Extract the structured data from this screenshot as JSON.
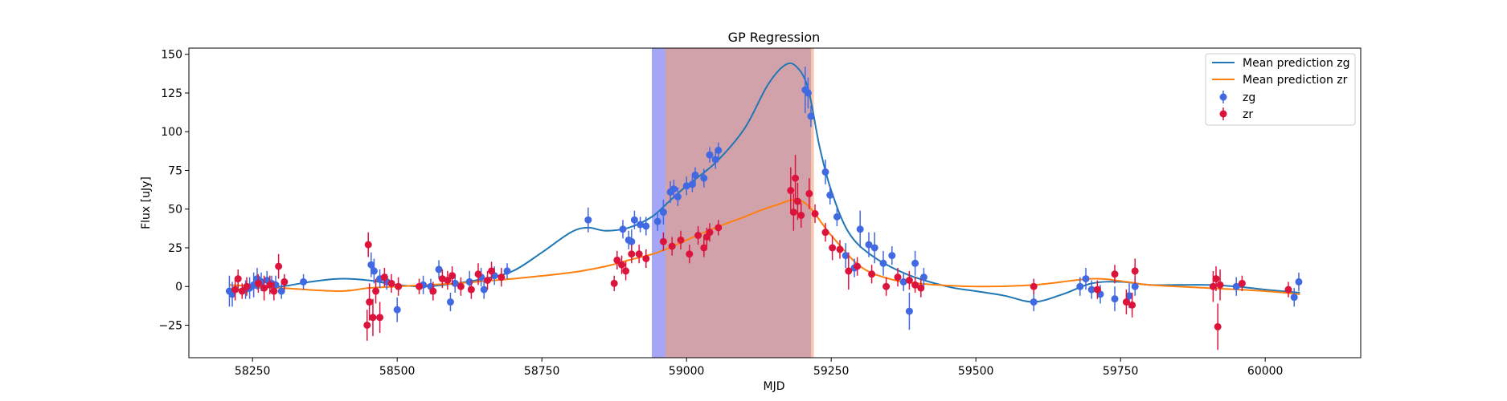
{
  "chart_data": {
    "type": "scatter",
    "title": "GP Regression",
    "xlabel": "MJD",
    "ylabel": "Flux [uJy]",
    "xlim": [
      58140,
      60165
    ],
    "ylim": [
      -46,
      154
    ],
    "xticks": [
      58250,
      58500,
      58750,
      59000,
      59250,
      59500,
      59750,
      60000
    ],
    "yticks": [
      -25,
      0,
      25,
      50,
      75,
      100,
      125,
      150
    ],
    "grid": false,
    "legend_position": "top-right",
    "legend": [
      "Mean prediction zg",
      "Mean prediction zr",
      "zg",
      "zr"
    ],
    "spans": [
      {
        "x0": 58940,
        "x1": 59215,
        "color": "#6a6af0",
        "alpha": 0.6
      },
      {
        "x0": 58963,
        "x1": 59220,
        "color": "#f0a07a",
        "alpha": 0.6
      }
    ],
    "series": [
      {
        "name": "Mean prediction zg",
        "kind": "line",
        "color": "#1f77b4",
        "x": [
          58210,
          58250,
          58300,
          58350,
          58400,
          58450,
          58500,
          58550,
          58600,
          58650,
          58700,
          58750,
          58800,
          58830,
          58860,
          58900,
          58940,
          58970,
          59000,
          59050,
          59100,
          59140,
          59170,
          59190,
          59210,
          59230,
          59250,
          59280,
          59320,
          59380,
          59450,
          59500,
          59550,
          59600,
          59650,
          59700,
          59750,
          59800,
          59850,
          59900,
          59950,
          60000,
          60060
        ],
        "y": [
          -3,
          -1,
          0,
          3,
          5,
          4,
          1,
          0,
          2,
          5,
          10,
          22,
          35,
          38,
          36,
          38,
          45,
          55,
          65,
          80,
          102,
          130,
          143,
          142,
          128,
          90,
          62,
          35,
          20,
          8,
          0,
          -3,
          -6,
          -10,
          -5,
          2,
          3,
          1,
          1,
          1,
          0,
          -2,
          -4
        ]
      },
      {
        "name": "Mean prediction zr",
        "kind": "line",
        "color": "#ff7f0e",
        "x": [
          58210,
          58300,
          58400,
          58450,
          58500,
          58600,
          58700,
          58800,
          58860,
          58900,
          58950,
          59000,
          59050,
          59100,
          59150,
          59200,
          59250,
          59300,
          59350,
          59400,
          59500,
          59600,
          59700,
          59760,
          59800,
          59900,
          60000,
          60060
        ],
        "y": [
          1,
          -1,
          -3,
          -1,
          0,
          2,
          5,
          9,
          13,
          17,
          22,
          30,
          38,
          45,
          52,
          55,
          33,
          13,
          5,
          2,
          0,
          1,
          5,
          3,
          1,
          -1,
          -3,
          -5
        ]
      },
      {
        "name": "zg",
        "kind": "errorbar",
        "color": "#4169e1",
        "x": [
          58210,
          58215,
          58238,
          58245,
          58252,
          58258,
          58265,
          58275,
          58283,
          58290,
          58300,
          58338,
          58455,
          58460,
          58470,
          58482,
          58500,
          58545,
          58558,
          58572,
          58592,
          58600,
          58625,
          58645,
          58650,
          58668,
          58690,
          58830,
          58890,
          58900,
          58905,
          58910,
          58920,
          58930,
          58950,
          58960,
          58972,
          58978,
          58985,
          59000,
          59010,
          59015,
          59030,
          59040,
          59050,
          59055,
          59205,
          59210,
          59215,
          59240,
          59248,
          59260,
          59275,
          59290,
          59300,
          59315,
          59325,
          59340,
          59355,
          59375,
          59385,
          59395,
          59410,
          59600,
          59680,
          59690,
          59700,
          59715,
          59740,
          59765,
          59775,
          59950,
          60050,
          60058
        ],
        "y": [
          -3,
          -5,
          -2,
          -1,
          1,
          5,
          3,
          4,
          2,
          1,
          -3,
          3,
          14,
          10,
          5,
          3,
          -15,
          1,
          0,
          11,
          -10,
          2,
          3,
          6,
          -2,
          7,
          10,
          43,
          37,
          30,
          29,
          43,
          40,
          39,
          42,
          48,
          61,
          63,
          58,
          65,
          66,
          72,
          70,
          85,
          82,
          88,
          127,
          125,
          110,
          74,
          59,
          45,
          20,
          12,
          37,
          27,
          25,
          15,
          20,
          3,
          -16,
          15,
          6,
          -10,
          0,
          5,
          -2,
          -5,
          -8,
          -6,
          0,
          0,
          -7,
          3
        ],
        "err": [
          10,
          8,
          6,
          7,
          8,
          7,
          6,
          6,
          5,
          6,
          5,
          5,
          8,
          8,
          6,
          5,
          8,
          6,
          5,
          6,
          6,
          6,
          7,
          6,
          6,
          6,
          5,
          8,
          6,
          6,
          8,
          6,
          5,
          6,
          6,
          8,
          7,
          6,
          6,
          6,
          5,
          5,
          6,
          5,
          6,
          5,
          15,
          10,
          7,
          8,
          6,
          6,
          8,
          6,
          12,
          8,
          10,
          8,
          6,
          6,
          12,
          8,
          6,
          6,
          6,
          7,
          6,
          6,
          8,
          8,
          6,
          6,
          6,
          6
        ]
      },
      {
        "name": "zr",
        "kind": "errorbar",
        "color": "#dc143c",
        "x": [
          58220,
          58225,
          58232,
          58240,
          58260,
          58270,
          58280,
          58287,
          58295,
          58305,
          58448,
          58450,
          58452,
          58458,
          58463,
          58470,
          58478,
          58490,
          58502,
          58538,
          58562,
          58578,
          58587,
          58595,
          58610,
          58628,
          58640,
          58656,
          58663,
          58680,
          58875,
          58880,
          58888,
          58895,
          58905,
          58918,
          58930,
          58960,
          58975,
          58990,
          59005,
          59020,
          59030,
          59035,
          59040,
          59055,
          59180,
          59185,
          59188,
          59192,
          59198,
          59212,
          59222,
          59240,
          59252,
          59265,
          59280,
          59295,
          59320,
          59345,
          59365,
          59385,
          59395,
          59405,
          59600,
          59710,
          59740,
          59760,
          59770,
          59775,
          59910,
          59915,
          59918,
          59922,
          59960,
          60040
        ],
        "y": [
          -2,
          5,
          -3,
          0,
          2,
          -1,
          1,
          -3,
          13,
          3,
          -25,
          27,
          -10,
          -20,
          -3,
          -20,
          6,
          2,
          0,
          0,
          -3,
          5,
          4,
          7,
          0,
          -2,
          8,
          4,
          10,
          6,
          2,
          17,
          14,
          10,
          21,
          21,
          18,
          29,
          26,
          30,
          21,
          33,
          25,
          32,
          35,
          38,
          62,
          48,
          70,
          55,
          46,
          60,
          47,
          35,
          25,
          24,
          10,
          13,
          8,
          0,
          6,
          4,
          1,
          -1,
          0,
          -2,
          8,
          -10,
          -12,
          10,
          0,
          5,
          -26,
          1,
          2,
          -2
        ],
        "err": [
          7,
          6,
          5,
          6,
          6,
          8,
          6,
          6,
          8,
          5,
          10,
          8,
          12,
          12,
          8,
          10,
          6,
          6,
          6,
          5,
          6,
          6,
          6,
          6,
          6,
          6,
          7,
          6,
          6,
          6,
          5,
          6,
          6,
          6,
          6,
          6,
          6,
          6,
          6,
          6,
          6,
          6,
          6,
          6,
          6,
          5,
          15,
          12,
          15,
          12,
          8,
          10,
          6,
          6,
          8,
          6,
          12,
          6,
          6,
          6,
          6,
          6,
          5,
          6,
          5,
          6,
          6,
          8,
          8,
          8,
          10,
          8,
          15,
          10,
          5,
          5
        ]
      }
    ]
  }
}
